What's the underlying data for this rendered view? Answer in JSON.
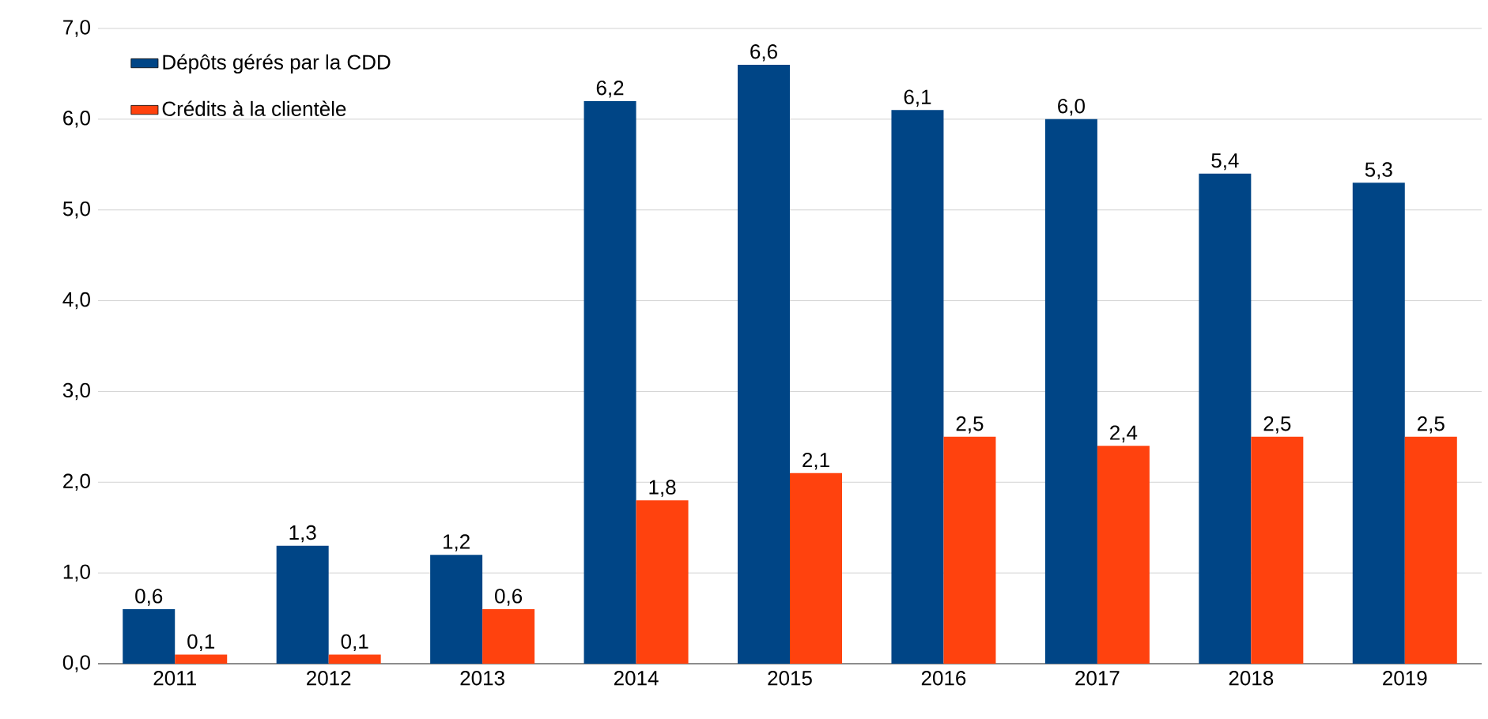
{
  "chart_data": {
    "type": "bar",
    "categories": [
      "2011",
      "2012",
      "2013",
      "2014",
      "2015",
      "2016",
      "2017",
      "2018",
      "2019"
    ],
    "series": [
      {
        "name": "Dépôts gérés par la CDD",
        "color": "#004586",
        "values": [
          0.6,
          1.3,
          1.2,
          6.2,
          6.6,
          6.1,
          6.0,
          5.4,
          5.3
        ],
        "value_labels": [
          "0,6",
          "1,3",
          "1,2",
          "6,2",
          "6,6",
          "6,1",
          "6,0",
          "5,4",
          "5,3"
        ]
      },
      {
        "name": "Crédits à la clientèle",
        "color": "#ff420e",
        "values": [
          0.1,
          0.1,
          0.6,
          1.8,
          2.1,
          2.5,
          2.4,
          2.5,
          2.5
        ],
        "value_labels": [
          "0,1",
          "0,1",
          "0,6",
          "1,8",
          "2,1",
          "2,5",
          "2,4",
          "2,5",
          "2,5"
        ]
      }
    ],
    "ylim": [
      0,
      7
    ],
    "yticks": [
      {
        "value": 0,
        "label": "0,0"
      },
      {
        "value": 1,
        "label": "1,0"
      },
      {
        "value": 2,
        "label": "2,0"
      },
      {
        "value": 3,
        "label": "3,0"
      },
      {
        "value": 4,
        "label": "4,0"
      },
      {
        "value": 5,
        "label": "5,0"
      },
      {
        "value": 6,
        "label": "6,0"
      },
      {
        "value": 7,
        "label": "7,0"
      }
    ],
    "grid": "y",
    "legend": "top left"
  }
}
